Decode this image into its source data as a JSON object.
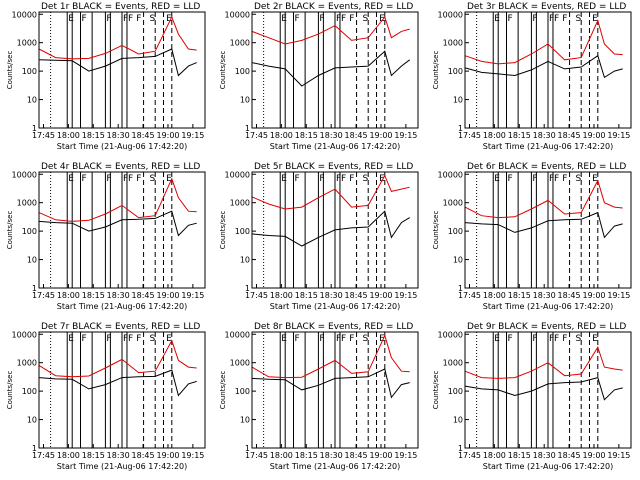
{
  "colors": {
    "events": "#000000",
    "lld": "#e00000",
    "axes": "#000000",
    "background": "#ffffff"
  },
  "common": {
    "ylabel": "Counts/sec",
    "xlabel": "Start Time (21-Aug-06 17:42:20)",
    "xtick_labels": [
      "17:45",
      "18:00",
      "18:15",
      "18:30",
      "18:45",
      "19:00",
      "19:15"
    ],
    "ytick_labels": [
      "1",
      "10",
      "100",
      "1000",
      "10000"
    ]
  },
  "chart_data": [
    {
      "type": "line",
      "title": "Det 1r BLACK = Events, RED = LLD",
      "x_minutes_from_start": [
        0,
        10,
        20,
        30,
        40,
        50,
        60,
        70,
        80,
        84,
        90,
        95
      ],
      "ylim": [
        1,
        12000
      ],
      "yscale": "log",
      "series": [
        {
          "values": [
            600,
            300,
            270,
            280,
            420,
            800,
            400,
            500,
            8000,
            2000,
            600,
            550
          ]
        },
        {
          "values": [
            250,
            240,
            230,
            100,
            150,
            280,
            300,
            330,
            600,
            70,
            150,
            200
          ]
        }
      ],
      "markers": [
        {
          "style": "dotted",
          "x": 7
        },
        {
          "style": "solid",
          "x": 17
        },
        {
          "style": "solid",
          "x": 20
        },
        {
          "style": "solid",
          "x": 25
        },
        {
          "style": "solid",
          "x": 32
        },
        {
          "style": "solid",
          "x": 40
        },
        {
          "style": "solid",
          "x": 43
        },
        {
          "style": "solid",
          "x": 50
        },
        {
          "style": "solid",
          "x": 53
        },
        {
          "style": "dashed",
          "x": 63
        },
        {
          "style": "dashed",
          "x": 70
        },
        {
          "style": "dashed",
          "x": 75
        },
        {
          "style": "dashed",
          "x": 80
        }
      ],
      "letters": [
        "E",
        "F",
        "F",
        "F",
        "F",
        "F",
        "S",
        "E"
      ]
    },
    {
      "type": "line",
      "title": "Det 2r BLACK = Events, RED = LLD",
      "x_minutes_from_start": [
        0,
        10,
        20,
        30,
        40,
        50,
        60,
        70,
        80,
        84,
        90,
        95
      ],
      "ylim": [
        1,
        12000
      ],
      "yscale": "log",
      "series": [
        {
          "values": [
            2500,
            1500,
            900,
            1200,
            2000,
            4000,
            1200,
            1500,
            8000,
            1500,
            2500,
            3000
          ]
        },
        {
          "values": [
            200,
            150,
            120,
            30,
            70,
            130,
            140,
            150,
            500,
            70,
            150,
            250
          ]
        }
      ],
      "markers": [
        {
          "style": "dotted",
          "x": 7
        },
        {
          "style": "solid",
          "x": 17
        },
        {
          "style": "solid",
          "x": 20
        },
        {
          "style": "solid",
          "x": 25
        },
        {
          "style": "solid",
          "x": 32
        },
        {
          "style": "solid",
          "x": 40
        },
        {
          "style": "solid",
          "x": 43
        },
        {
          "style": "solid",
          "x": 50
        },
        {
          "style": "solid",
          "x": 53
        },
        {
          "style": "dashed",
          "x": 63
        },
        {
          "style": "dashed",
          "x": 70
        },
        {
          "style": "dashed",
          "x": 75
        },
        {
          "style": "dashed",
          "x": 80
        }
      ],
      "letters": [
        "E",
        "F",
        "F",
        "F",
        "F",
        "F",
        "S",
        "E"
      ]
    },
    {
      "type": "line",
      "title": "Det 3r BLACK = Events, RED = LLD",
      "x_minutes_from_start": [
        0,
        10,
        20,
        30,
        40,
        50,
        60,
        70,
        80,
        84,
        90,
        95
      ],
      "ylim": [
        1,
        12000
      ],
      "yscale": "log",
      "series": [
        {
          "values": [
            350,
            220,
            180,
            200,
            400,
            900,
            250,
            300,
            6000,
            900,
            400,
            380
          ]
        },
        {
          "values": [
            130,
            90,
            80,
            70,
            110,
            220,
            120,
            140,
            350,
            60,
            100,
            120
          ]
        }
      ],
      "markers": [
        {
          "style": "dotted",
          "x": 7
        },
        {
          "style": "solid",
          "x": 17
        },
        {
          "style": "solid",
          "x": 20
        },
        {
          "style": "solid",
          "x": 25
        },
        {
          "style": "solid",
          "x": 32
        },
        {
          "style": "solid",
          "x": 40
        },
        {
          "style": "solid",
          "x": 43
        },
        {
          "style": "solid",
          "x": 50
        },
        {
          "style": "solid",
          "x": 53
        },
        {
          "style": "dashed",
          "x": 63
        },
        {
          "style": "dashed",
          "x": 70
        },
        {
          "style": "dashed",
          "x": 75
        },
        {
          "style": "dashed",
          "x": 80
        }
      ],
      "letters": [
        "E",
        "F",
        "F",
        "F",
        "F",
        "F",
        "S",
        "E"
      ]
    },
    {
      "type": "line",
      "title": "Det 4r BLACK = Events, RED = LLD",
      "x_minutes_from_start": [
        0,
        10,
        20,
        30,
        40,
        50,
        60,
        70,
        80,
        84,
        90,
        95
      ],
      "ylim": [
        1,
        12000
      ],
      "yscale": "log",
      "series": [
        {
          "values": [
            450,
            250,
            220,
            240,
            400,
            800,
            300,
            350,
            7000,
            1500,
            500,
            480
          ]
        },
        {
          "values": [
            220,
            200,
            190,
            100,
            140,
            250,
            260,
            280,
            500,
            70,
            160,
            190
          ]
        }
      ],
      "markers": [
        {
          "style": "dotted",
          "x": 7
        },
        {
          "style": "solid",
          "x": 17
        },
        {
          "style": "solid",
          "x": 20
        },
        {
          "style": "solid",
          "x": 25
        },
        {
          "style": "solid",
          "x": 32
        },
        {
          "style": "solid",
          "x": 40
        },
        {
          "style": "solid",
          "x": 43
        },
        {
          "style": "solid",
          "x": 50
        },
        {
          "style": "solid",
          "x": 53
        },
        {
          "style": "dashed",
          "x": 63
        },
        {
          "style": "dashed",
          "x": 70
        },
        {
          "style": "dashed",
          "x": 75
        },
        {
          "style": "dashed",
          "x": 80
        }
      ],
      "letters": [
        "E",
        "F",
        "F",
        "F",
        "F",
        "F",
        "S",
        "E"
      ]
    },
    {
      "type": "line",
      "title": "Det 5r BLACK = Events, RED = LLD",
      "x_minutes_from_start": [
        0,
        10,
        20,
        30,
        40,
        50,
        60,
        70,
        80,
        84,
        90,
        95
      ],
      "ylim": [
        1,
        12000
      ],
      "yscale": "log",
      "series": [
        {
          "values": [
            1600,
            900,
            600,
            700,
            1500,
            3000,
            700,
            800,
            9000,
            2500,
            3000,
            3500
          ]
        },
        {
          "values": [
            80,
            70,
            65,
            30,
            60,
            110,
            130,
            140,
            500,
            60,
            200,
            300
          ]
        }
      ],
      "markers": [
        {
          "style": "dotted",
          "x": 7
        },
        {
          "style": "solid",
          "x": 17
        },
        {
          "style": "solid",
          "x": 20
        },
        {
          "style": "solid",
          "x": 25
        },
        {
          "style": "solid",
          "x": 32
        },
        {
          "style": "solid",
          "x": 40
        },
        {
          "style": "solid",
          "x": 43
        },
        {
          "style": "solid",
          "x": 50
        },
        {
          "style": "solid",
          "x": 53
        },
        {
          "style": "dashed",
          "x": 63
        },
        {
          "style": "dashed",
          "x": 70
        },
        {
          "style": "dashed",
          "x": 75
        },
        {
          "style": "dashed",
          "x": 80
        }
      ],
      "letters": [
        "E",
        "F",
        "F",
        "F",
        "F",
        "F",
        "S",
        "E"
      ]
    },
    {
      "type": "line",
      "title": "Det 6r BLACK = Events, RED = LLD",
      "x_minutes_from_start": [
        0,
        10,
        20,
        30,
        40,
        50,
        60,
        70,
        80,
        84,
        90,
        95
      ],
      "ylim": [
        1,
        12000
      ],
      "yscale": "log",
      "series": [
        {
          "values": [
            700,
            350,
            300,
            320,
            600,
            1200,
            400,
            450,
            6000,
            1000,
            700,
            650
          ]
        },
        {
          "values": [
            200,
            180,
            170,
            90,
            130,
            230,
            250,
            260,
            450,
            60,
            150,
            180
          ]
        }
      ],
      "markers": [
        {
          "style": "dotted",
          "x": 7
        },
        {
          "style": "solid",
          "x": 17
        },
        {
          "style": "solid",
          "x": 20
        },
        {
          "style": "solid",
          "x": 25
        },
        {
          "style": "solid",
          "x": 32
        },
        {
          "style": "solid",
          "x": 40
        },
        {
          "style": "solid",
          "x": 43
        },
        {
          "style": "solid",
          "x": 50
        },
        {
          "style": "solid",
          "x": 53
        },
        {
          "style": "dashed",
          "x": 63
        },
        {
          "style": "dashed",
          "x": 70
        },
        {
          "style": "dashed",
          "x": 75
        },
        {
          "style": "dashed",
          "x": 80
        }
      ],
      "letters": [
        "E",
        "F",
        "F",
        "F",
        "F",
        "F",
        "S",
        "E"
      ]
    },
    {
      "type": "line",
      "title": "Det 7r BLACK = Events, RED = LLD",
      "x_minutes_from_start": [
        0,
        10,
        20,
        30,
        40,
        50,
        60,
        70,
        80,
        84,
        90,
        95
      ],
      "ylim": [
        1,
        12000
      ],
      "yscale": "log",
      "series": [
        {
          "values": [
            800,
            350,
            320,
            340,
            650,
            1300,
            450,
            500,
            6000,
            1200,
            700,
            650
          ]
        },
        {
          "values": [
            300,
            270,
            260,
            120,
            170,
            300,
            320,
            330,
            550,
            70,
            180,
            220
          ]
        }
      ],
      "markers": [
        {
          "style": "dotted",
          "x": 7
        },
        {
          "style": "solid",
          "x": 17
        },
        {
          "style": "solid",
          "x": 20
        },
        {
          "style": "solid",
          "x": 25
        },
        {
          "style": "solid",
          "x": 32
        },
        {
          "style": "solid",
          "x": 40
        },
        {
          "style": "solid",
          "x": 43
        },
        {
          "style": "solid",
          "x": 50
        },
        {
          "style": "solid",
          "x": 53
        },
        {
          "style": "dashed",
          "x": 63
        },
        {
          "style": "dashed",
          "x": 70
        },
        {
          "style": "dashed",
          "x": 75
        },
        {
          "style": "dashed",
          "x": 80
        }
      ],
      "letters": [
        "E",
        "F",
        "F",
        "F",
        "F",
        "F",
        "S",
        "E"
      ]
    },
    {
      "type": "line",
      "title": "Det 8r BLACK = Events, RED = LLD",
      "x_minutes_from_start": [
        0,
        10,
        20,
        30,
        40,
        50,
        60,
        70,
        80,
        84,
        90,
        95
      ],
      "ylim": [
        1,
        12000
      ],
      "yscale": "log",
      "series": [
        {
          "values": [
            700,
            320,
            300,
            310,
            600,
            1200,
            420,
            480,
            9000,
            1500,
            500,
            480
          ]
        },
        {
          "values": [
            280,
            260,
            250,
            110,
            160,
            280,
            300,
            320,
            600,
            60,
            170,
            200
          ]
        }
      ],
      "markers": [
        {
          "style": "dotted",
          "x": 7
        },
        {
          "style": "solid",
          "x": 17
        },
        {
          "style": "solid",
          "x": 20
        },
        {
          "style": "solid",
          "x": 25
        },
        {
          "style": "solid",
          "x": 32
        },
        {
          "style": "solid",
          "x": 40
        },
        {
          "style": "solid",
          "x": 43
        },
        {
          "style": "solid",
          "x": 50
        },
        {
          "style": "solid",
          "x": 53
        },
        {
          "style": "dashed",
          "x": 63
        },
        {
          "style": "dashed",
          "x": 70
        },
        {
          "style": "dashed",
          "x": 75
        },
        {
          "style": "dashed",
          "x": 80
        }
      ],
      "letters": [
        "E",
        "F",
        "F",
        "F",
        "F",
        "F",
        "S",
        "E"
      ]
    },
    {
      "type": "line",
      "title": "Det 9r BLACK = Events, RED = LLD",
      "x_minutes_from_start": [
        0,
        10,
        20,
        30,
        40,
        50,
        60,
        70,
        80,
        84,
        90,
        95
      ],
      "ylim": [
        1,
        12000
      ],
      "yscale": "log",
      "series": [
        {
          "values": [
            500,
            300,
            280,
            300,
            500,
            1000,
            350,
            400,
            3500,
            700,
            600,
            550
          ]
        },
        {
          "values": [
            150,
            120,
            110,
            70,
            100,
            180,
            200,
            210,
            300,
            50,
            110,
            130
          ]
        }
      ],
      "markers": [
        {
          "style": "dotted",
          "x": 7
        },
        {
          "style": "solid",
          "x": 17
        },
        {
          "style": "solid",
          "x": 20
        },
        {
          "style": "solid",
          "x": 25
        },
        {
          "style": "solid",
          "x": 32
        },
        {
          "style": "solid",
          "x": 40
        },
        {
          "style": "solid",
          "x": 43
        },
        {
          "style": "solid",
          "x": 50
        },
        {
          "style": "solid",
          "x": 53
        },
        {
          "style": "dashed",
          "x": 63
        },
        {
          "style": "dashed",
          "x": 70
        },
        {
          "style": "dashed",
          "x": 75
        },
        {
          "style": "dashed",
          "x": 80
        }
      ],
      "letters": [
        "E",
        "F",
        "F",
        "F",
        "F",
        "F",
        "S",
        "E"
      ]
    }
  ]
}
